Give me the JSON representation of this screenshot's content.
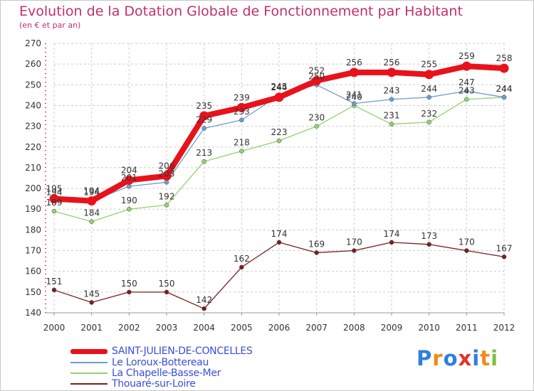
{
  "title": "Evolution de la Dotation Globale de Fonctionnement par Habitant",
  "subtitle": "(en € et par an)",
  "logo_text": "Proxiti",
  "chart_data": {
    "type": "line",
    "title": "Evolution de la Dotation Globale de Fonctionnement par Habitant",
    "ylabel": "(en € et par an)",
    "xlabel": "",
    "x": [
      "2000",
      "2001",
      "2002",
      "2003",
      "2004",
      "2005",
      "2006",
      "2007",
      "2008",
      "2009",
      "2010",
      "2011",
      "2012"
    ],
    "yticks": [
      140,
      150,
      160,
      170,
      180,
      190,
      200,
      210,
      220,
      230,
      240,
      250,
      260,
      270
    ],
    "ylim": [
      140,
      270
    ],
    "grid": true,
    "legend": "bottom-left",
    "series": [
      {
        "name": "Thouaré-sur-Loire",
        "color": "#7a1f1f",
        "values": [
          151,
          145,
          150,
          150,
          142,
          162,
          174,
          169,
          170,
          174,
          173,
          170,
          167
        ]
      },
      {
        "name": "La Chapelle-Basse-Mer",
        "color": "#92d36c",
        "values": [
          189,
          184,
          190,
          192,
          213,
          218,
          223,
          230,
          240,
          231,
          232,
          243,
          244
        ]
      },
      {
        "name": "Le Loroux-Bottereau",
        "color": "#6b9fd3",
        "values": [
          194,
          194,
          201,
          203,
          229,
          233,
          245,
          250,
          241,
          243,
          244,
          247,
          244
        ]
      },
      {
        "name": "SAINT-JULIEN-DE-CONCELLES",
        "color": "#e8121b",
        "values": [
          195,
          194,
          204,
          206,
          235,
          239,
          244,
          252,
          256,
          256,
          255,
          259,
          258
        ]
      }
    ]
  }
}
